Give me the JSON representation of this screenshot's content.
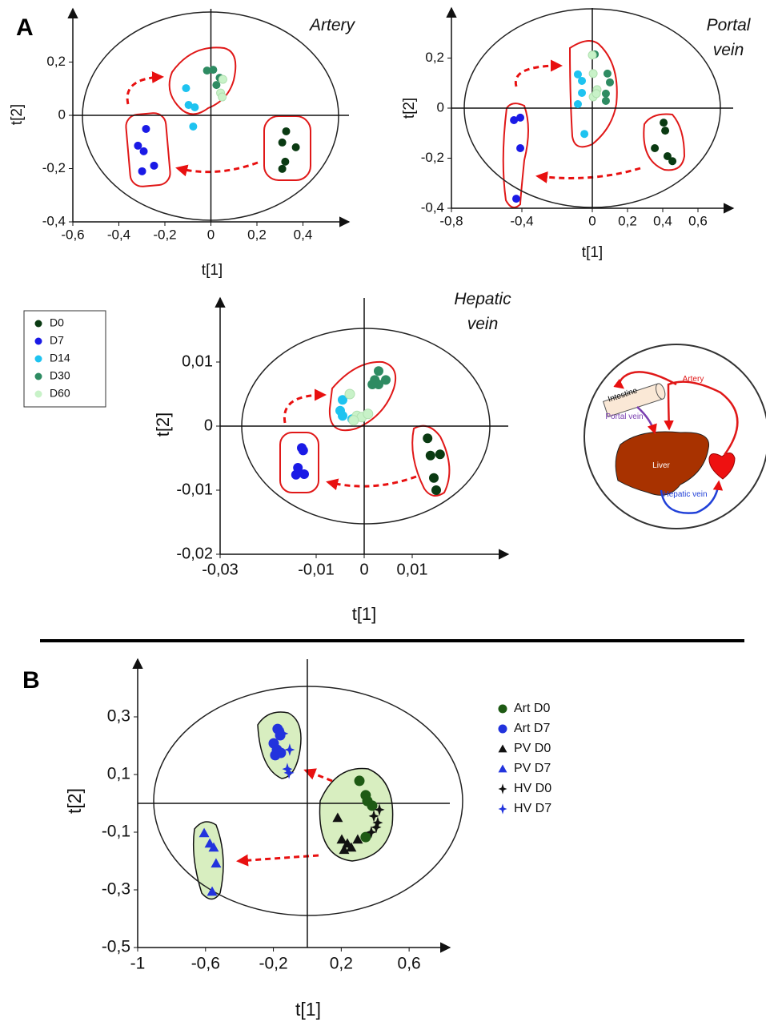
{
  "panel_labels": [
    "A",
    "B"
  ],
  "chart_data": [
    {
      "type": "scatter",
      "title": "Artery",
      "xlabel": "t[1]",
      "ylabel": "t[2]",
      "xlim": [
        -0.6,
        0.6
      ],
      "ylim": [
        -0.4,
        0.4
      ],
      "xticks": [
        {
          "value": -0.6,
          "label": "-0,6"
        },
        {
          "value": -0.4,
          "label": "-0,4"
        },
        {
          "value": -0.2,
          "label": "-0,2"
        },
        0,
        {
          "value": 0.2,
          "label": "0,2"
        },
        {
          "value": 0.4,
          "label": "0,4"
        }
      ],
      "yticks": [
        {
          "value": -0.4,
          "label": "-0,4"
        },
        {
          "value": -0.2,
          "label": "-0,2"
        },
        0,
        {
          "value": 0.2,
          "label": "0,2"
        }
      ],
      "series": [
        {
          "name": "D0",
          "color": "#0a3a12",
          "marker": "circle",
          "x": [
            0.327,
            0.31,
            0.369,
            0.323,
            0.31
          ],
          "y": [
            -0.06,
            -0.102,
            -0.12,
            -0.174,
            -0.201
          ]
        },
        {
          "name": "D7",
          "color": "#1a1ae6",
          "marker": "circle",
          "x": [
            -0.282,
            -0.317,
            -0.292,
            -0.247,
            -0.299
          ],
          "y": [
            -0.051,
            -0.114,
            -0.135,
            -0.189,
            -0.21
          ]
        },
        {
          "name": "D14",
          "color": "#1ec3f0",
          "marker": "circle",
          "x": [
            -0.108,
            -0.097,
            -0.07,
            -0.077
          ],
          "y": [
            0.102,
            0.039,
            0.03,
            -0.042
          ]
        },
        {
          "name": "D30",
          "color": "#2e8b62",
          "marker": "circle",
          "x": [
            -0.017,
            0.01,
            0.024,
            0.038
          ],
          "y": [
            0.168,
            0.171,
            0.114,
            0.141
          ]
        },
        {
          "name": "D60",
          "color": "#c8f2c8",
          "marker": "circle",
          "x": [
            0.052,
            0.042,
            0.049
          ],
          "y": [
            0.135,
            0.084,
            0.069
          ]
        }
      ]
    },
    {
      "type": "scatter",
      "title": "Portal vein",
      "xlabel": "t[1]",
      "ylabel": "t[2]",
      "xlim": [
        -0.8,
        0.8
      ],
      "ylim": [
        -0.4,
        0.4
      ],
      "xticks": [
        {
          "value": -0.8,
          "label": "-0,8"
        },
        {
          "value": -0.4,
          "label": "-0,4"
        },
        0,
        {
          "value": 0.2,
          "label": "0,2"
        },
        {
          "value": 0.4,
          "label": "0,4"
        },
        {
          "value": 0.6,
          "label": "0,6"
        }
      ],
      "yticks": [
        {
          "value": -0.4,
          "label": "-0,4"
        },
        {
          "value": -0.2,
          "label": "-0,2"
        },
        0,
        {
          "value": 0.2,
          "label": "0,2"
        }
      ],
      "series": [
        {
          "name": "D0",
          "color": "#0a3a12",
          "marker": "circle",
          "x": [
            0.405,
            0.414,
            0.355,
            0.427,
            0.455
          ],
          "y": [
            -0.058,
            -0.09,
            -0.16,
            -0.192,
            -0.212
          ]
        },
        {
          "name": "D7",
          "color": "#1a1ae6",
          "marker": "circle",
          "x": [
            -0.445,
            -0.409,
            -0.409,
            -0.432
          ],
          "y": [
            -0.048,
            -0.038,
            -0.16,
            -0.362
          ]
        },
        {
          "name": "D14",
          "color": "#1ec3f0",
          "marker": "circle",
          "x": [
            -0.082,
            -0.059,
            -0.059,
            -0.082,
            -0.045
          ],
          "y": [
            0.135,
            0.109,
            0.061,
            0.016,
            -0.103
          ]
        },
        {
          "name": "D30",
          "color": "#2e8b62",
          "marker": "circle",
          "x": [
            0.014,
            0.086,
            0.1,
            0.077,
            0.077
          ],
          "y": [
            0.215,
            0.138,
            0.103,
            0.058,
            0.029
          ]
        },
        {
          "name": "D60",
          "color": "#c8f2c8",
          "marker": "circle",
          "x": [
            0,
            0.005,
            0.027,
            0.005,
            0.023
          ],
          "y": [
            0.212,
            0.138,
            0.074,
            0.045,
            0.058
          ]
        }
      ]
    },
    {
      "type": "scatter",
      "title": "Hepatic vein",
      "xlabel": "t[1]",
      "ylabel": "t[2]",
      "legend": true,
      "xlim": [
        -0.03,
        0.03
      ],
      "ylim": [
        -0.02,
        0.02
      ],
      "xticks": [
        {
          "value": -0.03,
          "label": "-0,03"
        },
        {
          "value": -0.01,
          "label": "-0,01"
        },
        0,
        {
          "value": 0.01,
          "label": "0,01"
        }
      ],
      "yticks": [
        {
          "value": -0.02,
          "label": "-0,02"
        },
        {
          "value": -0.01,
          "label": "-0,01"
        },
        0,
        {
          "value": 0.01,
          "label": "0,01"
        }
      ],
      "series": [
        {
          "name": "D0",
          "color": "#0a3a12",
          "marker": "circle",
          "x": [
            0.0132,
            0.0138,
            0.0158,
            0.0145,
            0.015
          ],
          "y": [
            -0.0019,
            -0.0046,
            -0.0044,
            -0.0081,
            -0.01
          ]
        },
        {
          "name": "D7",
          "color": "#1a1ae6",
          "marker": "circle",
          "x": [
            -0.013,
            -0.0127,
            -0.0138,
            -0.0125,
            -0.0142
          ],
          "y": [
            -0.0034,
            -0.0038,
            -0.0065,
            -0.0075,
            -0.0076
          ]
        },
        {
          "name": "D14",
          "color": "#1ec3f0",
          "marker": "circle",
          "x": [
            -0.0045,
            -0.005,
            -0.0045,
            -0.0025
          ],
          "y": [
            0.0041,
            0.0024,
            0.0016,
            0.0011
          ]
        },
        {
          "name": "D30",
          "color": "#2e8b62",
          "marker": "circle",
          "x": [
            0.003,
            0.0022,
            0.003,
            0.0045,
            0.0017
          ],
          "y": [
            0.0086,
            0.0072,
            0.0065,
            0.0072,
            0.0065
          ]
        },
        {
          "name": "D60",
          "color": "#c8f2c8",
          "marker": "circle",
          "x": [
            -0.003,
            -0.0015,
            -0.0005,
            0.0008,
            -0.0022
          ],
          "y": [
            0.005,
            0.0016,
            0.0014,
            0.0019,
            0.0009
          ]
        }
      ]
    },
    {
      "type": "scatter",
      "xlabel": "t[1]",
      "ylabel": "t[2]",
      "legend": true,
      "xlim": [
        -1,
        0.84
      ],
      "ylim": [
        -0.5,
        0.5
      ],
      "xticks": [
        -1,
        {
          "value": -0.6,
          "label": "-0,6"
        },
        {
          "value": -0.2,
          "label": "-0,2"
        },
        {
          "value": 0.2,
          "label": "0,2"
        },
        {
          "value": 0.6,
          "label": "0,6"
        }
      ],
      "yticks": [
        {
          "value": 0.3,
          "label": "0,3"
        },
        {
          "value": 0.1,
          "label": "0,1"
        },
        {
          "value": -0.1,
          "label": "-0,1"
        },
        {
          "value": -0.3,
          "label": "-0,3"
        },
        {
          "value": -0.5,
          "label": "-0,5"
        }
      ],
      "series": [
        {
          "name": "Art D0",
          "color": "#1e5a14",
          "marker": "circle",
          "x": [
            0.307,
            0.344,
            0.354,
            0.382,
            0.344
          ],
          "y": [
            0.078,
            0.028,
            0.008,
            -0.008,
            -0.117
          ]
        },
        {
          "name": "Art D7",
          "color": "#2233dd",
          "marker": "circle",
          "x": [
            -0.175,
            -0.16,
            -0.198,
            -0.179,
            -0.189,
            -0.156
          ],
          "y": [
            0.258,
            0.236,
            0.208,
            0.186,
            0.167,
            0.175
          ]
        },
        {
          "name": "PV D0",
          "color": "#111111",
          "marker": "triangle",
          "x": [
            0.179,
            0.203,
            0.236,
            0.217,
            0.259,
            0.297
          ],
          "y": [
            -0.05,
            -0.125,
            -0.139,
            -0.161,
            -0.153,
            -0.125
          ]
        },
        {
          "name": "PV D7",
          "color": "#2233dd",
          "marker": "triangle",
          "x": [
            -0.608,
            -0.575,
            -0.552,
            -0.538,
            -0.561
          ],
          "y": [
            -0.103,
            -0.139,
            -0.153,
            -0.208,
            -0.306
          ]
        },
        {
          "name": "HV D0",
          "color": "#111111",
          "marker": "star",
          "x": [
            0.392,
            0.415,
            0.406,
            0.377,
            0.425
          ],
          "y": [
            -0.044,
            -0.067,
            -0.083,
            -0.1,
            -0.022
          ]
        },
        {
          "name": "HV D7",
          "color": "#2233dd",
          "marker": "star",
          "x": [
            -0.142,
            -0.104,
            -0.118,
            -0.108
          ],
          "y": [
            0.242,
            0.186,
            0.119,
            0.106
          ]
        }
      ]
    }
  ],
  "diagram": {
    "intestine": "Intestine",
    "artery": "Artery",
    "portal_vein": "Portal vein",
    "liver": "Liver",
    "hepatic_vein": "Hepatic vein"
  }
}
